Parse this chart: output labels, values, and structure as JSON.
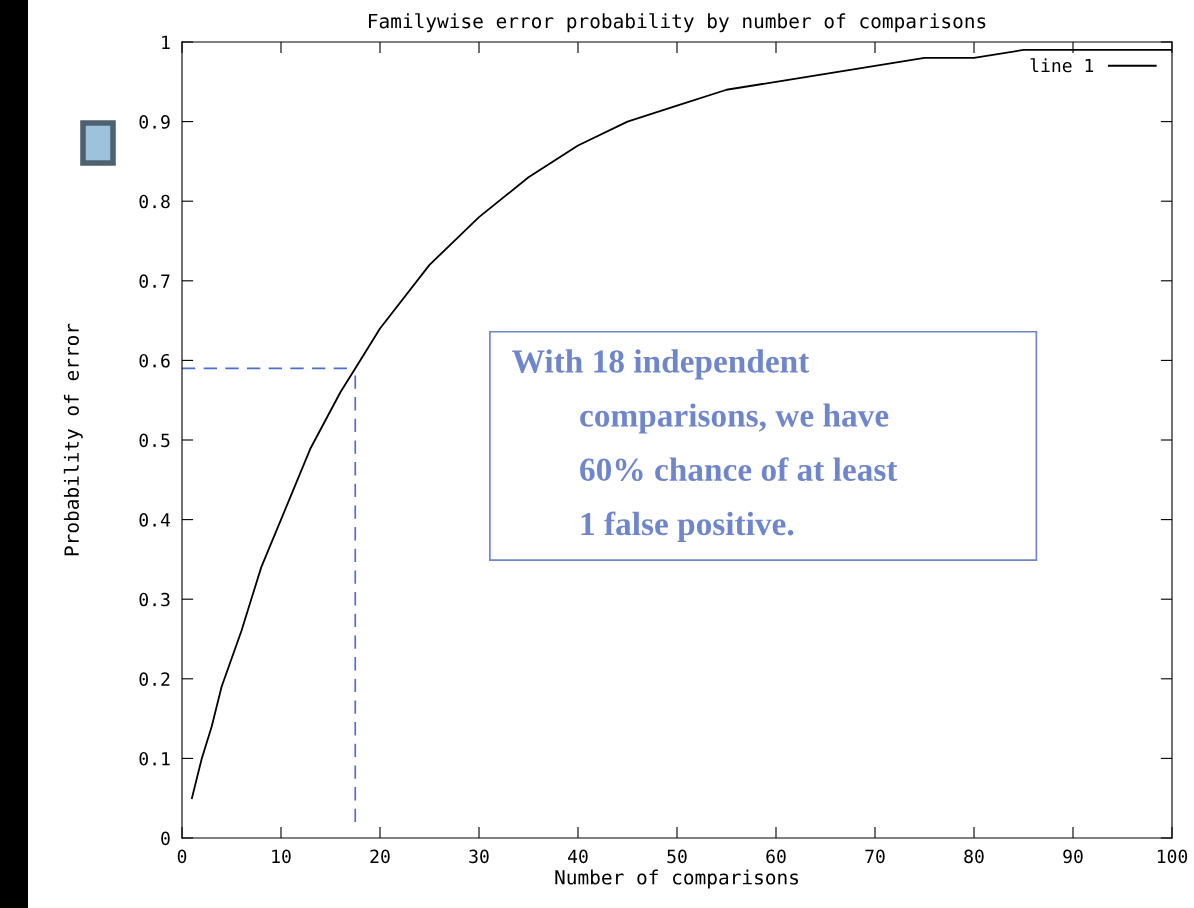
{
  "chart_data": {
    "type": "line",
    "title": "Familywise error probability by number of comparisons",
    "xlabel": "Number of comparisons",
    "ylabel": "Probability of error",
    "x": [
      1,
      2,
      3,
      4,
      6,
      8,
      10,
      13,
      16,
      18,
      20,
      25,
      30,
      35,
      40,
      45,
      50,
      55,
      60,
      65,
      70,
      75,
      80,
      85,
      90,
      95,
      100
    ],
    "series": [
      {
        "name": "line 1",
        "color": "#000000",
        "values": [
          0.05,
          0.1,
          0.14,
          0.19,
          0.26,
          0.34,
          0.4,
          0.49,
          0.56,
          0.6,
          0.64,
          0.72,
          0.78,
          0.83,
          0.87,
          0.9,
          0.92,
          0.94,
          0.95,
          0.96,
          0.97,
          0.98,
          0.98,
          0.99,
          0.99,
          0.99,
          0.99
        ]
      }
    ],
    "xlim": [
      0,
      100
    ],
    "ylim": [
      0,
      1
    ],
    "xticks": [
      0,
      10,
      20,
      30,
      40,
      50,
      60,
      70,
      80,
      90,
      100
    ],
    "yticks": [
      0,
      0.1,
      0.2,
      0.3,
      0.4,
      0.5,
      0.6,
      0.7,
      0.8,
      0.9,
      1
    ],
    "ref_lines": [
      {
        "axis": "x",
        "value": 17.5,
        "color": "#4a6fd0",
        "line_style": "dashed"
      },
      {
        "axis": "y",
        "value": 0.59,
        "color": "#4a6fd0",
        "line_style": "dashed"
      }
    ],
    "annotations": [
      "With 18 independent\ncomparisons, we have\n60% chance of at least\n1 false positive."
    ],
    "legend": "top right",
    "grid": false,
    "marker": "none",
    "line_style": "solid"
  }
}
